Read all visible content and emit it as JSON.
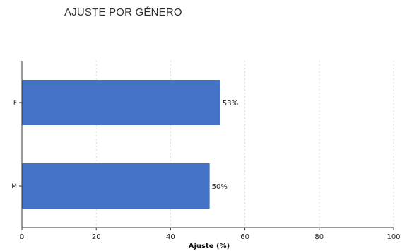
{
  "title": "AJUSTE POR GÉNERO",
  "chart_data": {
    "type": "bar",
    "orientation": "horizontal",
    "categories": [
      "F",
      "M"
    ],
    "values": [
      53.4,
      50.5
    ],
    "data_labels": [
      "53%",
      "50%"
    ],
    "xlabel": "Ajuste (%)",
    "ylabel": "",
    "xlim": [
      0,
      100
    ],
    "xticks": [
      0,
      20,
      40,
      60,
      80,
      100
    ],
    "grid": "vertical dashed",
    "bar_color": "#4472c4"
  }
}
